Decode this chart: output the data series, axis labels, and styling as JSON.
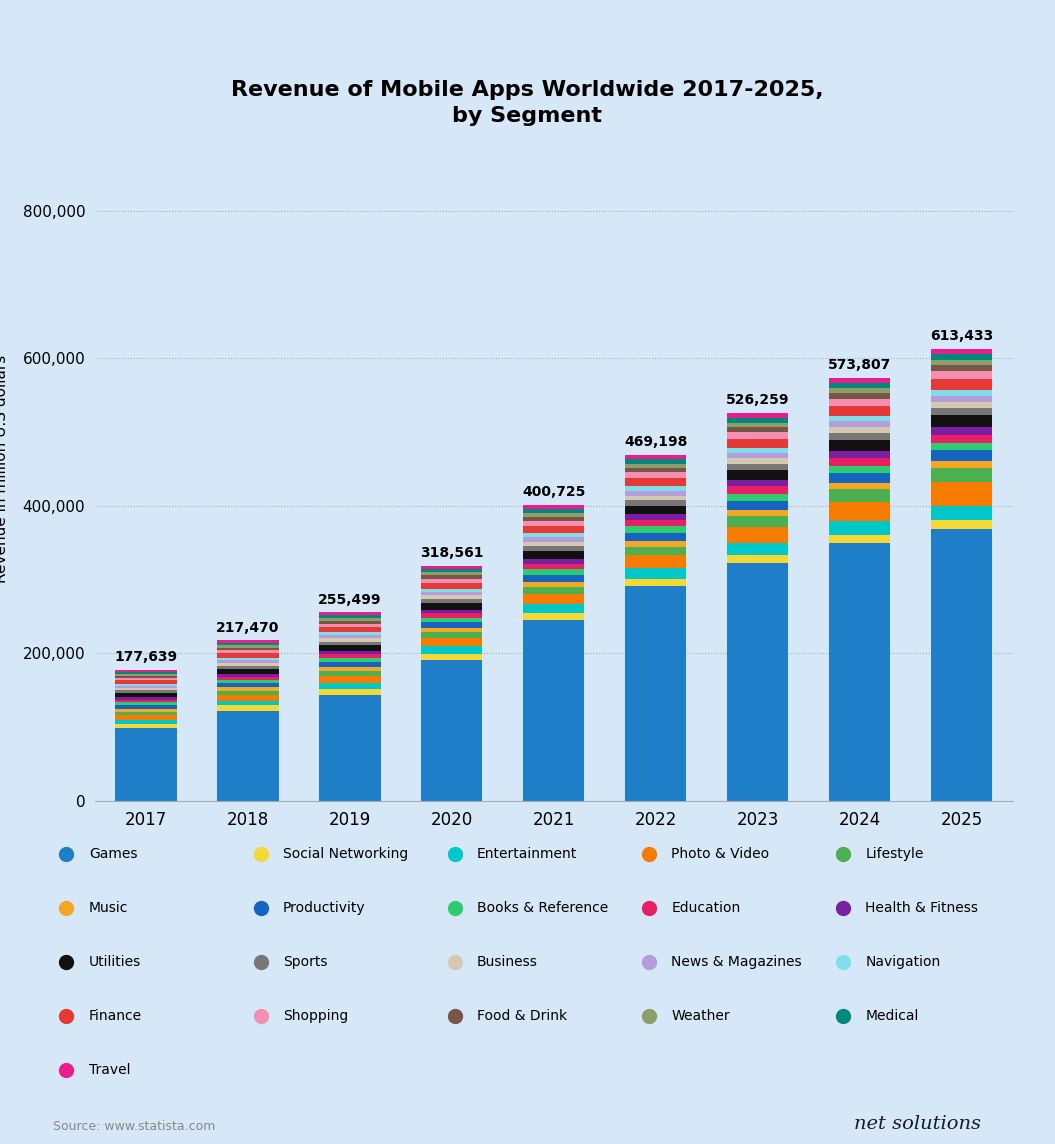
{
  "title": "Revenue of Mobile Apps Worldwide 2017-2025,\nby Segment",
  "years": [
    2017,
    2018,
    2019,
    2020,
    2021,
    2022,
    2023,
    2024,
    2025
  ],
  "totals": [
    177639,
    217470,
    255499,
    318561,
    400725,
    469198,
    526259,
    573807,
    613433
  ],
  "ylabel": "Revenue in million U.S dollars",
  "background_color": "#d6e8f7",
  "plot_bg_color": "#d6e8f7",
  "segments": {
    "Games": {
      "color": "#1e7ec8",
      "values": [
        76000,
        95000,
        115000,
        155000,
        200000,
        240000,
        265000,
        290000,
        310000
      ]
    },
    "Social Networking": {
      "color": "#f5d833",
      "values": [
        4500,
        5500,
        6500,
        7000,
        8000,
        8500,
        9000,
        9500,
        10000
      ]
    },
    "Entertainment": {
      "color": "#00c8c8",
      "values": [
        4000,
        5000,
        6500,
        8000,
        10000,
        12000,
        14000,
        15000,
        16000
      ]
    },
    "Photo & Video": {
      "color": "#f57c00",
      "values": [
        5000,
        6000,
        7500,
        9000,
        11000,
        14000,
        18000,
        22000,
        27000
      ]
    },
    "Lifestyle": {
      "color": "#4caf50",
      "values": [
        3500,
        4500,
        5500,
        6500,
        8000,
        10000,
        12000,
        14000,
        16000
      ]
    },
    "Music": {
      "color": "#f5a623",
      "values": [
        3000,
        3500,
        4000,
        4500,
        5500,
        6500,
        7000,
        7500,
        8000
      ]
    },
    "Productivity": {
      "color": "#1565c0",
      "values": [
        3500,
        4500,
        5500,
        6500,
        8000,
        9000,
        10000,
        11000,
        12000
      ]
    },
    "Books & Reference": {
      "color": "#2ecc71",
      "values": [
        3000,
        3500,
        4500,
        5000,
        6000,
        7000,
        7500,
        8000,
        8500
      ]
    },
    "Education": {
      "color": "#e91e63",
      "values": [
        3000,
        3500,
        4000,
        5000,
        6500,
        7500,
        8500,
        9000,
        9500
      ]
    },
    "Health & Fitness": {
      "color": "#7b1fa2",
      "values": [
        2500,
        3000,
        3500,
        4000,
        5000,
        6000,
        7000,
        8000,
        9000
      ]
    },
    "Utilities": {
      "color": "#111111",
      "values": [
        4000,
        5000,
        6000,
        7000,
        8500,
        9500,
        11000,
        12000,
        13000
      ]
    },
    "Sports": {
      "color": "#777777",
      "values": [
        3000,
        3500,
        4000,
        4500,
        5500,
        6000,
        7000,
        7500,
        8000
      ]
    },
    "Business": {
      "color": "#d4c9b0",
      "values": [
        2500,
        3000,
        3500,
        4000,
        5000,
        5500,
        6500,
        7000,
        7500
      ]
    },
    "News & Magazines": {
      "color": "#b39ddb",
      "values": [
        2500,
        3000,
        3500,
        4000,
        5000,
        5500,
        6000,
        6500,
        7000
      ]
    },
    "Navigation": {
      "color": "#80deea",
      "values": [
        2000,
        2500,
        3000,
        3500,
        4500,
        5000,
        5500,
        6000,
        6500
      ]
    },
    "Finance": {
      "color": "#e53935",
      "values": [
        3500,
        4500,
        5500,
        6500,
        8000,
        9000,
        10000,
        11000,
        12000
      ]
    },
    "Shopping": {
      "color": "#f48fb1",
      "values": [
        3000,
        3500,
        4000,
        4500,
        5500,
        6500,
        7500,
        8500,
        9500
      ]
    },
    "Food & Drink": {
      "color": "#795548",
      "values": [
        2000,
        2500,
        3000,
        3500,
        4500,
        5000,
        5500,
        6000,
        6500
      ]
    },
    "Weather": {
      "color": "#8d9e6b",
      "values": [
        2000,
        2500,
        3000,
        3500,
        4000,
        4500,
        5000,
        5500,
        6000
      ]
    },
    "Medical": {
      "color": "#00897b",
      "values": [
        2000,
        2500,
        3000,
        3500,
        4500,
        5000,
        5500,
        6000,
        6500
      ]
    },
    "Travel": {
      "color": "#e91e8c",
      "values": [
        2000,
        2500,
        3000,
        3500,
        4500,
        5000,
        5500,
        6000,
        6500
      ]
    }
  },
  "ylim": [
    0,
    900000
  ],
  "yticks": [
    0,
    200000,
    400000,
    600000,
    800000
  ],
  "ytick_labels": [
    "0",
    "200,000",
    "400,000",
    "600,000",
    "800,000"
  ],
  "source_text": "Source: www.statista.com",
  "logo_text": "net solutions"
}
